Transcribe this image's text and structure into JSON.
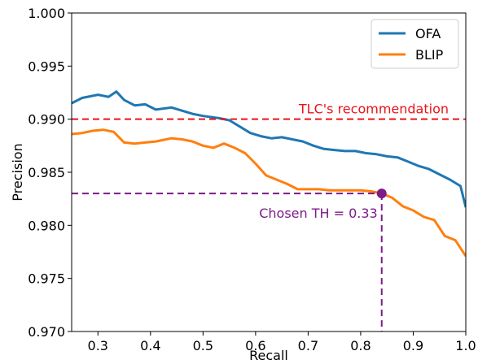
{
  "chart_data": {
    "type": "line",
    "xlabel": "Recall",
    "ylabel": "Precision",
    "xlim": [
      0.25,
      1.0
    ],
    "ylim": [
      0.97,
      1.0
    ],
    "xticks": [
      "0.3",
      "0.4",
      "0.5",
      "0.6",
      "0.7",
      "0.8",
      "0.9",
      "1.0"
    ],
    "yticks": [
      "0.970",
      "0.975",
      "0.980",
      "0.985",
      "0.990",
      "0.995",
      "1.000"
    ],
    "grid": false,
    "legend_position": "top-right",
    "series": [
      {
        "name": "OFA",
        "color": "#1f77b4",
        "x": [
          0.25,
          0.27,
          0.3,
          0.32,
          0.335,
          0.35,
          0.37,
          0.39,
          0.41,
          0.44,
          0.46,
          0.48,
          0.5,
          0.53,
          0.55,
          0.57,
          0.59,
          0.61,
          0.63,
          0.65,
          0.67,
          0.69,
          0.71,
          0.73,
          0.75,
          0.77,
          0.79,
          0.81,
          0.83,
          0.85,
          0.87,
          0.89,
          0.91,
          0.93,
          0.95,
          0.97,
          0.99,
          1.0
        ],
        "y": [
          0.9915,
          0.992,
          0.9923,
          0.9921,
          0.9926,
          0.9918,
          0.9913,
          0.9914,
          0.9909,
          0.9911,
          0.9908,
          0.9905,
          0.9903,
          0.9901,
          0.9899,
          0.9893,
          0.9887,
          0.9884,
          0.9882,
          0.9883,
          0.9881,
          0.9879,
          0.9875,
          0.9872,
          0.9871,
          0.987,
          0.987,
          0.9868,
          0.9867,
          0.9865,
          0.9864,
          0.986,
          0.9856,
          0.9853,
          0.9848,
          0.9843,
          0.9837,
          0.9817
        ]
      },
      {
        "name": "BLIP",
        "color": "#ff7f0e",
        "x": [
          0.25,
          0.27,
          0.29,
          0.31,
          0.33,
          0.35,
          0.37,
          0.39,
          0.41,
          0.44,
          0.46,
          0.48,
          0.5,
          0.52,
          0.54,
          0.56,
          0.58,
          0.6,
          0.62,
          0.64,
          0.66,
          0.68,
          0.7,
          0.72,
          0.74,
          0.76,
          0.78,
          0.8,
          0.82,
          0.84,
          0.86,
          0.88,
          0.9,
          0.92,
          0.94,
          0.96,
          0.98,
          1.0
        ],
        "y": [
          0.9886,
          0.9887,
          0.9889,
          0.989,
          0.9888,
          0.9878,
          0.9877,
          0.9878,
          0.9879,
          0.9882,
          0.9881,
          0.9879,
          0.9875,
          0.9873,
          0.9877,
          0.9873,
          0.9868,
          0.9858,
          0.9847,
          0.9843,
          0.9839,
          0.9834,
          0.9834,
          0.9834,
          0.9833,
          0.9833,
          0.9833,
          0.9833,
          0.9832,
          0.983,
          0.9826,
          0.9818,
          0.9814,
          0.9808,
          0.9805,
          0.979,
          0.9786,
          0.9771
        ]
      }
    ],
    "annotations": {
      "recommendation": {
        "label": "TLC's recommendation",
        "y": 0.99,
        "color": "#e8141b"
      },
      "chosen": {
        "label": "Chosen TH = 0.33",
        "x": 0.84,
        "y": 0.983,
        "color": "#7b1c88"
      }
    }
  }
}
